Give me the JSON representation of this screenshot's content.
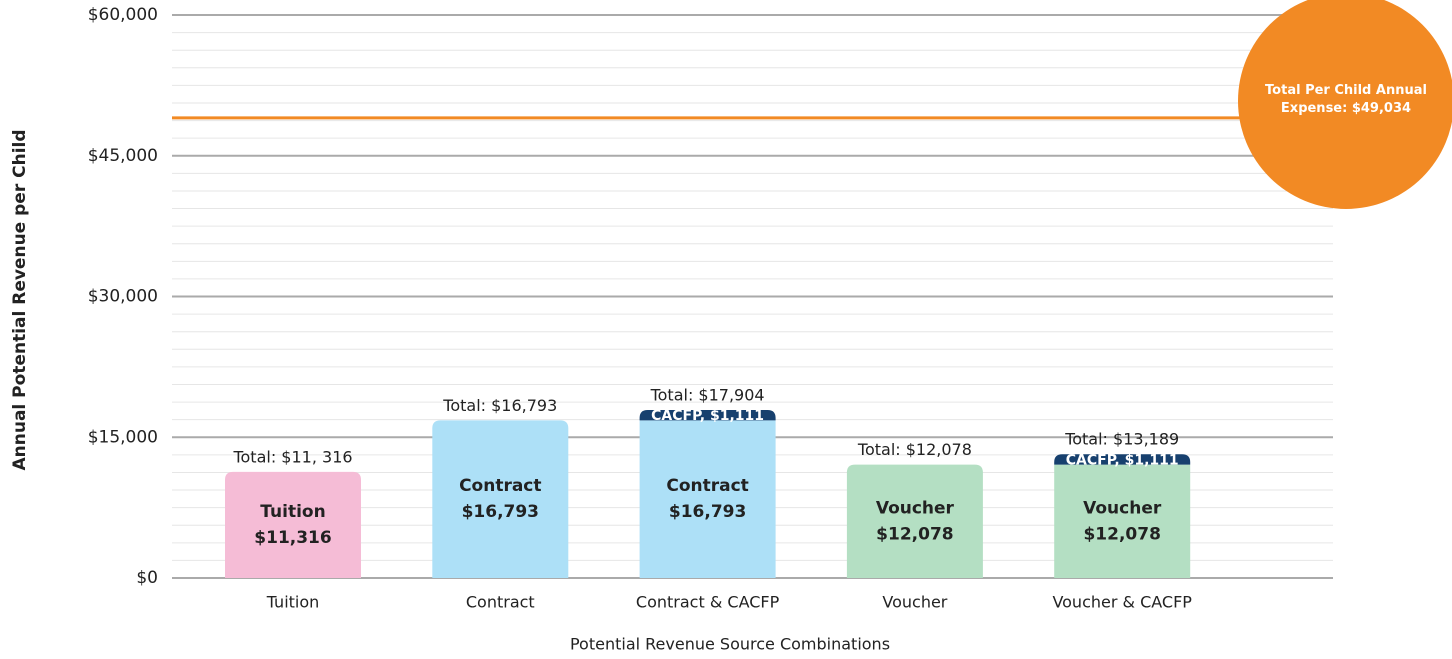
{
  "chart_data": {
    "type": "bar",
    "stacked": true,
    "x_label": "Potential Revenue Source Combinations",
    "y_label": "Annual Potential Revenue per Child",
    "categories": [
      "Tuition",
      "Contract",
      "Contract & CACFP",
      "Voucher",
      "Voucher & CACFP"
    ],
    "series": [
      {
        "name": "Tuition",
        "color": "#f5bcd6",
        "values": [
          11316,
          null,
          null,
          null,
          null
        ],
        "value_labels": [
          "$11,316",
          null,
          null,
          null,
          null
        ]
      },
      {
        "name": "Contract",
        "color": "#ade0f7",
        "values": [
          null,
          16793,
          16793,
          null,
          null
        ],
        "value_labels": [
          null,
          "$16,793",
          "$16,793",
          null,
          null
        ]
      },
      {
        "name": "Voucher",
        "color": "#b4dfc3",
        "values": [
          null,
          null,
          null,
          12078,
          12078
        ],
        "value_labels": [
          null,
          null,
          null,
          "$12,078",
          "$12,078"
        ]
      },
      {
        "color": "#17406e",
        "values": [
          null,
          null,
          1111,
          null,
          1111
        ],
        "value_labels": [
          null,
          null,
          "CACFP, $1,111",
          null,
          "CACFP, $1,111"
        ]
      }
    ],
    "total_labels": [
      "Total: $11, 316",
      "Total: $16,793",
      "Total: $17,904",
      "Total: $12,078",
      "Total: $13,189"
    ],
    "reference_line": {
      "value": 49034,
      "label": "Total Per Child Annual Expense: $49,034",
      "color": "#f28a24"
    },
    "ylim": [
      0,
      60000
    ],
    "yticks": [
      {
        "value": 0,
        "label": "$0"
      },
      {
        "value": 15000,
        "label": "$15,000"
      },
      {
        "value": 30000,
        "label": "$30,000"
      },
      {
        "value": 45000,
        "label": "$45,000"
      },
      {
        "value": 60000,
        "label": "$60,000"
      }
    ],
    "minor_yticks": [
      1875,
      3750,
      5625,
      7500,
      9375,
      11250,
      13125,
      16875,
      18750,
      20625,
      22500,
      24375,
      26250,
      28125,
      31875,
      33750,
      35625,
      37500,
      39375,
      41250,
      43125,
      46875,
      48750,
      50625,
      52500,
      54375,
      56250,
      58125
    ],
    "grid": true
  }
}
